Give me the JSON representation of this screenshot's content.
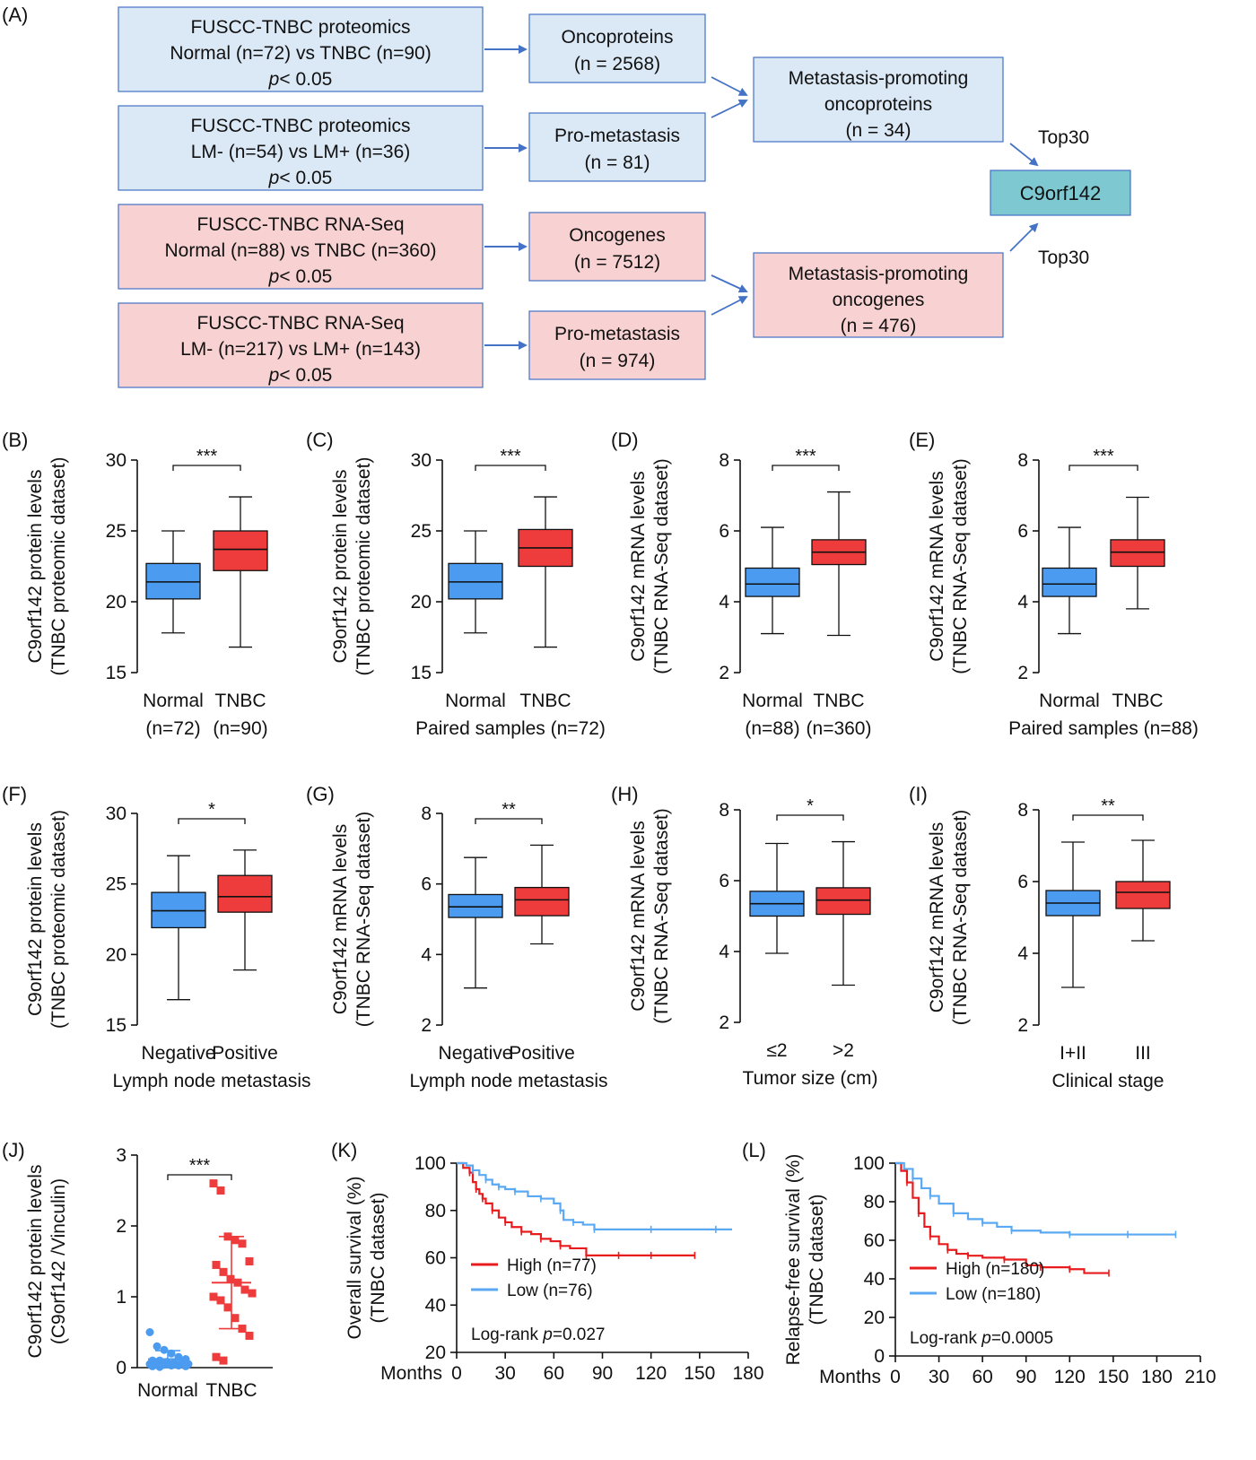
{
  "figure": {
    "flowchart": {
      "panel_label": "(A)",
      "inputs": [
        {
          "line1": "FUSCC-TNBC proteomics",
          "line2": "Normal (n=72) vs TNBC (n=90)",
          "p_symbol": "p",
          "p_value": "< 0.05",
          "color": "#dbe8f5"
        },
        {
          "line1": "FUSCC-TNBC proteomics",
          "line2": "LM- (n=54) vs LM+ (n=36)",
          "p_symbol": "p",
          "p_value": "< 0.05",
          "color": "#dbe8f5"
        },
        {
          "line1": "FUSCC-TNBC RNA-Seq",
          "line2": "Normal (n=88) vs TNBC (n=360)",
          "p_symbol": "p",
          "p_value": "< 0.05",
          "color": "#f8d2d2"
        },
        {
          "line1": "FUSCC-TNBC RNA-Seq",
          "line2": "LM- (n=217) vs LM+ (n=143)",
          "p_symbol": "p",
          "p_value": "< 0.05",
          "color": "#f8d2d2"
        }
      ],
      "middle": [
        {
          "line1": "Oncoproteins",
          "line2": "(n = 2568)"
        },
        {
          "line1": "Pro-metastasis",
          "line2": "(n = 81)"
        },
        {
          "line1": "Oncogenes",
          "line2": "(n = 7512)"
        },
        {
          "line1": "Pro-metastasis",
          "line2": "(n = 974)"
        }
      ],
      "merged": [
        {
          "line1": "Metastasis-promoting",
          "line2": "oncoproteins",
          "line3": "(n = 34)"
        },
        {
          "line1": "Metastasis-promoting",
          "line2": "oncogenes",
          "line3": "(n = 476)"
        }
      ],
      "top_labels": [
        "Top30",
        "Top30"
      ],
      "final": "C9orf142",
      "final_color": "#7ec8d2",
      "arrow_color": "#4472c4"
    }
  },
  "colors": {
    "normal": "#4b9bf0",
    "tnbc": "#ee3b3b",
    "low": "#5aa9f2",
    "high": "#e81c1c"
  },
  "chart_data": [
    {
      "panel": "(B)",
      "type": "box",
      "ylabel_line1": "C9orf142 protein levels",
      "ylabel_line2": "(TNBC proteomic dataset)",
      "ylim": [
        15,
        30
      ],
      "yticks": [
        15,
        20,
        25,
        30
      ],
      "categories": [
        "Normal",
        "TNBC"
      ],
      "category_sub": [
        "(n=72)",
        "(n=90)"
      ],
      "xlabel": "",
      "boxes": [
        {
          "min": 17.8,
          "q1": 20.2,
          "median": 21.4,
          "q3": 22.7,
          "max": 25.0
        },
        {
          "min": 16.8,
          "q1": 22.2,
          "median": 23.7,
          "q3": 25.0,
          "max": 27.4
        }
      ],
      "significance": "***"
    },
    {
      "panel": "(C)",
      "type": "box",
      "ylabel_line1": "C9orf142 protein levels",
      "ylabel_line2": "(TNBC proteomic dataset)",
      "ylim": [
        15,
        30
      ],
      "yticks": [
        15,
        20,
        25,
        30
      ],
      "categories": [
        "Normal",
        "TNBC"
      ],
      "category_sub": [],
      "xlabel": "Paired samples (n=72)",
      "boxes": [
        {
          "min": 17.8,
          "q1": 20.2,
          "median": 21.4,
          "q3": 22.7,
          "max": 25.0
        },
        {
          "min": 16.8,
          "q1": 22.5,
          "median": 23.8,
          "q3": 25.1,
          "max": 27.4
        }
      ],
      "significance": "***"
    },
    {
      "panel": "(D)",
      "type": "box",
      "ylabel_line1": "C9orf142 mRNA levels",
      "ylabel_line2": "(TNBC RNA-Seq dataset)",
      "ylim": [
        2,
        8
      ],
      "yticks": [
        2,
        4,
        6,
        8
      ],
      "categories": [
        "Normal",
        "TNBC"
      ],
      "category_sub": [
        "(n=88)",
        "(n=360)"
      ],
      "xlabel": "",
      "boxes": [
        {
          "min": 3.1,
          "q1": 4.15,
          "median": 4.5,
          "q3": 4.95,
          "max": 6.1
        },
        {
          "min": 3.05,
          "q1": 5.05,
          "median": 5.4,
          "q3": 5.75,
          "max": 7.1
        }
      ],
      "significance": "***"
    },
    {
      "panel": "(E)",
      "type": "box",
      "ylabel_line1": "C9orf142 mRNA levels",
      "ylabel_line2": "(TNBC RNA-Seq dataset)",
      "ylim": [
        2,
        8
      ],
      "yticks": [
        2,
        4,
        6,
        8
      ],
      "categories": [
        "Normal",
        "TNBC"
      ],
      "category_sub": [],
      "xlabel": "Paired samples (n=88)",
      "boxes": [
        {
          "min": 3.1,
          "q1": 4.15,
          "median": 4.5,
          "q3": 4.95,
          "max": 6.1
        },
        {
          "min": 3.8,
          "q1": 5.0,
          "median": 5.4,
          "q3": 5.75,
          "max": 6.95
        }
      ],
      "significance": "***"
    },
    {
      "panel": "(F)",
      "type": "box",
      "ylabel_line1": "C9orf142 protein levels",
      "ylabel_line2": "(TNBC proteomic dataset)",
      "ylim": [
        15,
        30
      ],
      "yticks": [
        15,
        20,
        25,
        30
      ],
      "categories": [
        "Negative",
        "Positive"
      ],
      "category_sub": [],
      "xlabel": "Lymph node metastasis",
      "boxes": [
        {
          "min": 16.8,
          "q1": 21.9,
          "median": 23.1,
          "q3": 24.4,
          "max": 27.0
        },
        {
          "min": 18.9,
          "q1": 23.0,
          "median": 24.1,
          "q3": 25.6,
          "max": 27.4
        }
      ],
      "significance": "*"
    },
    {
      "panel": "(G)",
      "type": "box",
      "ylabel_line1": "C9orf142 mRNA levels",
      "ylabel_line2": "(TNBC RNA-Seq dataset)",
      "ylim": [
        2,
        8
      ],
      "yticks": [
        2,
        4,
        6,
        8
      ],
      "categories": [
        "Negative",
        "Positive"
      ],
      "category_sub": [],
      "xlabel": "Lymph node metastasis",
      "boxes": [
        {
          "min": 3.05,
          "q1": 5.05,
          "median": 5.35,
          "q3": 5.7,
          "max": 6.75
        },
        {
          "min": 4.3,
          "q1": 5.1,
          "median": 5.55,
          "q3": 5.9,
          "max": 7.1
        }
      ],
      "significance": "**"
    },
    {
      "panel": "(H)",
      "type": "box",
      "ylabel_line1": "C9orf142 mRNA levels",
      "ylabel_line2": "(TNBC RNA-Seq dataset)",
      "ylim": [
        2,
        8
      ],
      "yticks": [
        2,
        4,
        6,
        8
      ],
      "categories": [
        "≤2",
        ">2"
      ],
      "category_sub": [],
      "xlabel": "Tumor size (cm)",
      "boxes": [
        {
          "min": 3.95,
          "q1": 5.0,
          "median": 5.35,
          "q3": 5.7,
          "max": 7.05
        },
        {
          "min": 3.05,
          "q1": 5.05,
          "median": 5.45,
          "q3": 5.8,
          "max": 7.1
        }
      ],
      "significance": "*"
    },
    {
      "panel": "(I)",
      "type": "box",
      "ylabel_line1": "C9orf142 mRNA levels",
      "ylabel_line2": "(TNBC RNA-Seq dataset)",
      "ylim": [
        2,
        8
      ],
      "yticks": [
        2,
        4,
        6,
        8
      ],
      "categories": [
        "I+II",
        "III"
      ],
      "category_sub": [],
      "xlabel": "Clinical stage",
      "boxes": [
        {
          "min": 3.05,
          "q1": 5.05,
          "median": 5.4,
          "q3": 5.75,
          "max": 7.1
        },
        {
          "min": 4.35,
          "q1": 5.25,
          "median": 5.7,
          "q3": 6.0,
          "max": 7.15
        }
      ],
      "significance": "**"
    },
    {
      "panel": "(J)",
      "type": "scatter",
      "ylabel_line1": "C9orf142 protein levels",
      "ylabel_line2": "(C9orf142 /Vinculin)",
      "ylim": [
        0,
        3
      ],
      "yticks": [
        0,
        1,
        2,
        3
      ],
      "categories": [
        "Normal",
        "TNBC"
      ],
      "groups": [
        {
          "values": [
            0.5,
            0.3,
            0.25,
            0.2,
            0.15,
            0.12,
            0.1,
            0.1,
            0.08,
            0.07,
            0.06,
            0.05,
            0.05,
            0.04,
            0.04,
            0.03,
            0.03,
            0.02,
            0.02,
            0.01
          ],
          "mean": 0.12,
          "sd": 0.12
        },
        {
          "values": [
            2.6,
            2.5,
            1.85,
            1.8,
            1.75,
            1.5,
            1.45,
            1.35,
            1.25,
            1.2,
            1.1,
            1.05,
            1.0,
            0.95,
            0.85,
            0.7,
            0.55,
            0.45,
            0.15,
            0.1
          ],
          "mean": 1.2,
          "sd": 0.65
        }
      ],
      "significance": "***"
    },
    {
      "panel": "(K)",
      "type": "line",
      "ylabel_line1": "Overall survival (%)",
      "ylabel_line2": "(TNBC dataset)",
      "ylim": [
        20,
        100
      ],
      "yticks": [
        20,
        40,
        60,
        80,
        100
      ],
      "xlim": [
        0,
        180
      ],
      "xticks": [
        0,
        30,
        60,
        90,
        120,
        150,
        180
      ],
      "xlabel": "Months",
      "series": [
        {
          "name": "High (n=77)",
          "x": [
            0,
            4,
            8,
            10,
            12,
            14,
            16,
            18,
            22,
            26,
            30,
            34,
            40,
            46,
            52,
            58,
            64,
            70,
            80,
            90,
            100,
            110,
            120,
            130,
            147
          ],
          "y": [
            100,
            98,
            96,
            92,
            89,
            87,
            85,
            83,
            80,
            77,
            75,
            73,
            71,
            70,
            68,
            67,
            65,
            64,
            61,
            61,
            61,
            61,
            61,
            61,
            61
          ]
        },
        {
          "name": "Low (n=76)",
          "x": [
            0,
            6,
            10,
            14,
            18,
            22,
            26,
            30,
            36,
            44,
            52,
            60,
            64,
            66,
            72,
            78,
            85,
            100,
            120,
            140,
            160,
            170
          ],
          "y": [
            100,
            99,
            97,
            95,
            93,
            91,
            90,
            89,
            88,
            86,
            85,
            83,
            80,
            76,
            75,
            74,
            72,
            72,
            72,
            72,
            72,
            72
          ]
        }
      ],
      "annotation_prefix": "Log-rank ",
      "annotation_p": "p",
      "annotation_value": "=0.027"
    },
    {
      "panel": "(L)",
      "type": "line",
      "ylabel_line1": "Relapse-free survival (%)",
      "ylabel_line2": "(TNBC dataset)",
      "ylim": [
        0,
        100
      ],
      "yticks": [
        0,
        20,
        40,
        60,
        80,
        100
      ],
      "xlim": [
        0,
        210
      ],
      "xticks": [
        0,
        30,
        60,
        90,
        120,
        150,
        180,
        210
      ],
      "xlabel": "Months",
      "series": [
        {
          "name": "High (n=180)",
          "x": [
            0,
            4,
            8,
            12,
            16,
            20,
            24,
            30,
            36,
            42,
            50,
            60,
            75,
            90,
            100,
            110,
            120,
            130,
            147
          ],
          "y": [
            100,
            96,
            90,
            82,
            74,
            67,
            62,
            58,
            55,
            53,
            52,
            51,
            50,
            47,
            46,
            46,
            45,
            43,
            43
          ]
        },
        {
          "name": "Low (n=180)",
          "x": [
            0,
            6,
            12,
            18,
            24,
            30,
            40,
            50,
            60,
            70,
            80,
            100,
            120,
            140,
            160,
            180,
            193
          ],
          "y": [
            100,
            97,
            92,
            87,
            83,
            79,
            74,
            71,
            69,
            67,
            65,
            64,
            63,
            63,
            63,
            63,
            63
          ]
        }
      ],
      "annotation_prefix": "Log-rank ",
      "annotation_p": "p",
      "annotation_value": "=0.0005"
    }
  ]
}
